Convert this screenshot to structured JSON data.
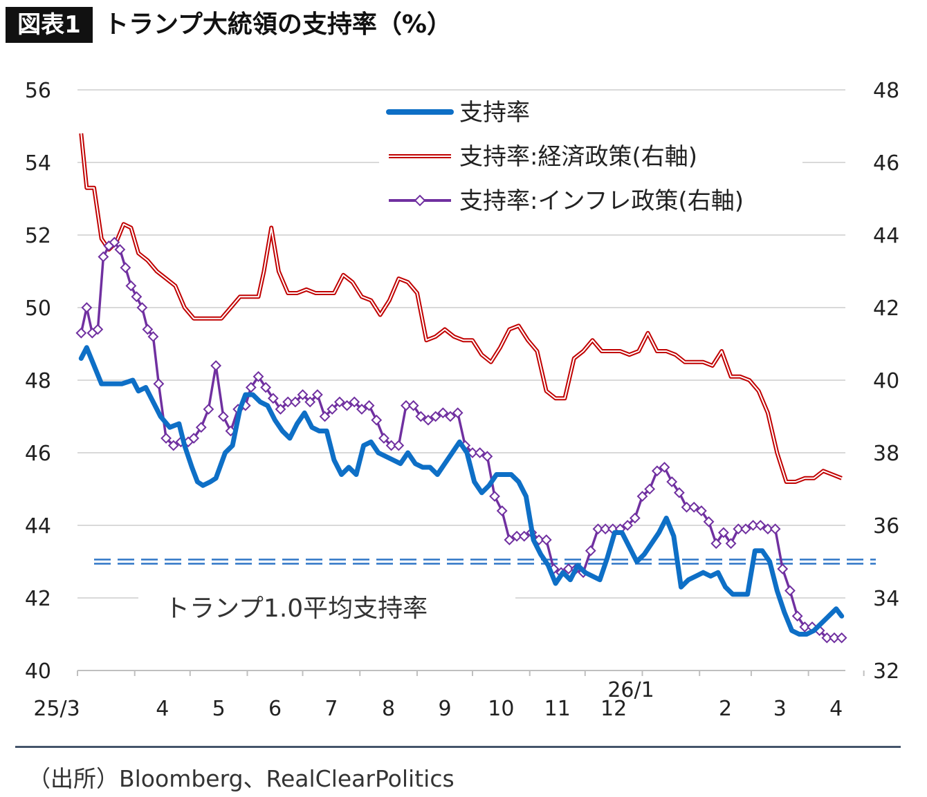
{
  "header": {
    "figure_label": "図表1",
    "title": "トランプ大統領の支持率（%）"
  },
  "footer": {
    "source": "（出所）Bloomberg、RealClearPolitics"
  },
  "chart_data": {
    "type": "line",
    "title": "トランプ大統領の支持率（%）",
    "x_tick_labels": [
      "25/3",
      "4",
      "5",
      "6",
      "7",
      "8",
      "9",
      "10",
      "11",
      "12",
      "26/1",
      "2",
      "3",
      "4"
    ],
    "x_range": [
      "2025-03-01",
      "2026-04-21"
    ],
    "y_left": {
      "range": [
        40,
        56
      ],
      "ticks": [
        40,
        42,
        44,
        46,
        48,
        50,
        52,
        54,
        56
      ]
    },
    "y_right": {
      "range": [
        32,
        48
      ],
      "ticks": [
        32,
        34,
        36,
        38,
        40,
        42,
        44,
        46,
        48
      ]
    },
    "grid": true,
    "legend_position": "top-center",
    "reference_line": {
      "label": "トランプ1.0平均支持率",
      "value": 43,
      "axis": "left",
      "style": "double-dashed",
      "color": "#2e75c6"
    },
    "series": [
      {
        "name": "支持率",
        "axis": "left",
        "color": "#0e6fc6",
        "style": "thick",
        "x": [
          "2025-03-03",
          "2025-03-06",
          "2025-03-10",
          "2025-03-14",
          "2025-03-20",
          "2025-03-25",
          "2025-03-31",
          "2025-04-03",
          "2025-04-07",
          "2025-04-11",
          "2025-04-15",
          "2025-04-20",
          "2025-04-25",
          "2025-04-28",
          "2025-05-02",
          "2025-05-05",
          "2025-05-08",
          "2025-05-12",
          "2025-05-15",
          "2025-05-20",
          "2025-05-24",
          "2025-05-28",
          "2025-05-31",
          "2025-06-04",
          "2025-06-08",
          "2025-06-12",
          "2025-06-16",
          "2025-06-20",
          "2025-06-24",
          "2025-06-28",
          "2025-07-02",
          "2025-07-06",
          "2025-07-10",
          "2025-07-14",
          "2025-07-18",
          "2025-07-22",
          "2025-07-26",
          "2025-07-30",
          "2025-08-03",
          "2025-08-07",
          "2025-08-11",
          "2025-08-15",
          "2025-08-19",
          "2025-08-23",
          "2025-08-27",
          "2025-08-31",
          "2025-09-04",
          "2025-09-08",
          "2025-09-12",
          "2025-09-16",
          "2025-09-20",
          "2025-09-24",
          "2025-09-28",
          "2025-10-02",
          "2025-10-06",
          "2025-10-10",
          "2025-10-14",
          "2025-10-18",
          "2025-10-22",
          "2025-10-26",
          "2025-10-30",
          "2025-11-03",
          "2025-11-07",
          "2025-11-11",
          "2025-11-15",
          "2025-11-19",
          "2025-11-23",
          "2025-11-27",
          "2025-12-01",
          "2025-12-05",
          "2025-12-09",
          "2025-12-13",
          "2025-12-17",
          "2025-12-21",
          "2025-12-25",
          "2025-12-29",
          "2026-01-02",
          "2026-01-06",
          "2026-01-10",
          "2026-01-14",
          "2026-01-18",
          "2026-01-22",
          "2026-01-26",
          "2026-01-30",
          "2026-02-03",
          "2026-02-07",
          "2026-02-11",
          "2026-02-15",
          "2026-02-19",
          "2026-02-23",
          "2026-02-27",
          "2026-03-03",
          "2026-03-07",
          "2026-03-11",
          "2026-03-15",
          "2026-03-19",
          "2026-03-23",
          "2026-03-27",
          "2026-03-31",
          "2026-04-04",
          "2026-04-08",
          "2026-04-12",
          "2026-04-16",
          "2026-04-19"
        ],
        "values": [
          48.6,
          48.9,
          48.4,
          47.9,
          47.9,
          47.9,
          48.0,
          47.7,
          47.8,
          47.4,
          47.0,
          46.7,
          46.8,
          46.2,
          45.6,
          45.2,
          45.1,
          45.2,
          45.3,
          46.0,
          46.2,
          47.2,
          47.6,
          47.6,
          47.4,
          47.3,
          46.9,
          46.6,
          46.4,
          46.8,
          47.1,
          46.7,
          46.6,
          46.6,
          45.8,
          45.4,
          45.6,
          45.4,
          46.2,
          46.3,
          46.0,
          45.9,
          45.8,
          45.7,
          46.0,
          45.7,
          45.6,
          45.6,
          45.4,
          45.7,
          46.0,
          46.3,
          46.0,
          45.2,
          44.9,
          45.1,
          45.4,
          45.4,
          45.4,
          45.2,
          44.8,
          43.6,
          43.2,
          42.9,
          42.4,
          42.7,
          42.5,
          42.9,
          42.7,
          42.6,
          42.5,
          43.1,
          43.8,
          43.8,
          43.4,
          43.0,
          43.2,
          43.5,
          43.8,
          44.2,
          43.7,
          42.3,
          42.5,
          42.6,
          42.7,
          42.6,
          42.7,
          42.3,
          42.1,
          42.1,
          42.1,
          43.3,
          43.3,
          43.0,
          42.2,
          41.6,
          41.1,
          41.0,
          41.0,
          41.1,
          41.3,
          41.5,
          41.7,
          41.5
        ]
      },
      {
        "name": "支持率:経済政策(右軸)",
        "axis": "right",
        "color": "#c00000",
        "style": "double",
        "x": [
          "2025-03-03",
          "2025-03-06",
          "2025-03-10",
          "2025-03-14",
          "2025-03-18",
          "2025-03-22",
          "2025-03-26",
          "2025-03-30",
          "2025-04-03",
          "2025-04-08",
          "2025-04-13",
          "2025-04-18",
          "2025-04-23",
          "2025-04-28",
          "2025-05-03",
          "2025-05-08",
          "2025-05-13",
          "2025-05-18",
          "2025-05-23",
          "2025-05-28",
          "2025-06-02",
          "2025-06-07",
          "2025-06-10",
          "2025-06-14",
          "2025-06-18",
          "2025-06-23",
          "2025-06-28",
          "2025-07-03",
          "2025-07-08",
          "2025-07-13",
          "2025-07-18",
          "2025-07-23",
          "2025-07-28",
          "2025-08-02",
          "2025-08-07",
          "2025-08-12",
          "2025-08-17",
          "2025-08-22",
          "2025-08-27",
          "2025-09-01",
          "2025-09-06",
          "2025-09-11",
          "2025-09-16",
          "2025-09-21",
          "2025-09-26",
          "2025-10-01",
          "2025-10-06",
          "2025-10-11",
          "2025-10-16",
          "2025-10-21",
          "2025-10-26",
          "2025-10-31",
          "2025-11-05",
          "2025-11-10",
          "2025-11-15",
          "2025-11-20",
          "2025-11-25",
          "2025-11-30",
          "2025-12-05",
          "2025-12-10",
          "2025-12-15",
          "2025-12-20",
          "2025-12-25",
          "2025-12-30",
          "2026-01-04",
          "2026-01-09",
          "2026-01-14",
          "2026-01-19",
          "2026-01-24",
          "2026-01-29",
          "2026-02-03",
          "2026-02-08",
          "2026-02-13",
          "2026-02-18",
          "2026-02-23",
          "2026-02-28",
          "2026-03-05",
          "2026-03-10",
          "2026-03-15",
          "2026-03-20",
          "2026-03-25",
          "2026-03-30",
          "2026-04-04",
          "2026-04-09",
          "2026-04-14",
          "2026-04-19"
        ],
        "values": [
          46.8,
          45.3,
          45.3,
          43.9,
          43.6,
          43.8,
          44.3,
          44.2,
          43.5,
          43.3,
          43.0,
          42.8,
          42.6,
          42.0,
          41.7,
          41.7,
          41.7,
          41.7,
          42.0,
          42.3,
          42.3,
          42.3,
          43.0,
          44.2,
          43.0,
          42.4,
          42.4,
          42.5,
          42.4,
          42.4,
          42.4,
          42.9,
          42.7,
          42.3,
          42.2,
          41.8,
          42.2,
          42.8,
          42.7,
          42.4,
          41.1,
          41.2,
          41.4,
          41.2,
          41.1,
          41.1,
          40.7,
          40.5,
          40.9,
          41.4,
          41.5,
          41.1,
          40.8,
          39.7,
          39.5,
          39.5,
          40.6,
          40.8,
          41.1,
          40.8,
          40.8,
          40.8,
          40.7,
          40.8,
          41.3,
          40.8,
          40.8,
          40.7,
          40.5,
          40.5,
          40.5,
          40.4,
          40.8,
          40.1,
          40.1,
          40.0,
          39.7,
          39.1,
          38.0,
          37.2,
          37.2,
          37.3,
          37.3,
          37.5,
          37.4,
          37.3
        ]
      },
      {
        "name": "支持率:インフレ政策(右軸)",
        "axis": "right",
        "color": "#7030a0",
        "style": "line-with-diamond-markers",
        "x": [
          "2025-03-03",
          "2025-03-06",
          "2025-03-09",
          "2025-03-12",
          "2025-03-15",
          "2025-03-18",
          "2025-03-21",
          "2025-03-24",
          "2025-03-27",
          "2025-03-30",
          "2025-04-02",
          "2025-04-05",
          "2025-04-08",
          "2025-04-11",
          "2025-04-14",
          "2025-04-18",
          "2025-04-22",
          "2025-04-26",
          "2025-04-30",
          "2025-05-03",
          "2025-05-07",
          "2025-05-11",
          "2025-05-15",
          "2025-05-19",
          "2025-05-23",
          "2025-05-27",
          "2025-05-31",
          "2025-06-03",
          "2025-06-07",
          "2025-06-11",
          "2025-06-15",
          "2025-06-19",
          "2025-06-23",
          "2025-06-27",
          "2025-07-01",
          "2025-07-05",
          "2025-07-09",
          "2025-07-13",
          "2025-07-17",
          "2025-07-21",
          "2025-07-25",
          "2025-07-29",
          "2025-08-02",
          "2025-08-06",
          "2025-08-10",
          "2025-08-14",
          "2025-08-18",
          "2025-08-22",
          "2025-08-26",
          "2025-08-30",
          "2025-09-03",
          "2025-09-07",
          "2025-09-11",
          "2025-09-15",
          "2025-09-19",
          "2025-09-23",
          "2025-09-27",
          "2025-10-01",
          "2025-10-05",
          "2025-10-09",
          "2025-10-13",
          "2025-10-17",
          "2025-10-21",
          "2025-10-25",
          "2025-10-29",
          "2025-11-02",
          "2025-11-06",
          "2025-11-10",
          "2025-11-14",
          "2025-11-18",
          "2025-11-22",
          "2025-11-26",
          "2025-11-30",
          "2025-12-04",
          "2025-12-08",
          "2025-12-12",
          "2025-12-16",
          "2025-12-20",
          "2025-12-24",
          "2025-12-28",
          "2026-01-01",
          "2026-01-05",
          "2026-01-09",
          "2026-01-13",
          "2026-01-17",
          "2026-01-21",
          "2026-01-25",
          "2026-01-29",
          "2026-02-02",
          "2026-02-06",
          "2026-02-10",
          "2026-02-14",
          "2026-02-18",
          "2026-02-22",
          "2026-02-26",
          "2026-03-02",
          "2026-03-06",
          "2026-03-10",
          "2026-03-14",
          "2026-03-18",
          "2026-03-22",
          "2026-03-26",
          "2026-03-30",
          "2026-04-03",
          "2026-04-07",
          "2026-04-11",
          "2026-04-15",
          "2026-04-19"
        ],
        "values": [
          41.3,
          42.0,
          41.3,
          41.4,
          43.4,
          43.7,
          43.8,
          43.6,
          43.1,
          42.6,
          42.3,
          42.0,
          41.4,
          41.2,
          39.9,
          38.4,
          38.2,
          38.3,
          38.3,
          38.4,
          38.7,
          39.2,
          40.4,
          39.0,
          38.6,
          39.2,
          39.3,
          39.8,
          40.1,
          39.8,
          39.5,
          39.2,
          39.4,
          39.4,
          39.6,
          39.4,
          39.6,
          39.0,
          39.2,
          39.4,
          39.3,
          39.4,
          39.2,
          39.3,
          38.9,
          38.4,
          38.2,
          38.2,
          39.3,
          39.3,
          39.0,
          38.9,
          39.0,
          39.1,
          39.0,
          39.1,
          38.2,
          38.0,
          38.0,
          37.9,
          36.8,
          36.4,
          35.6,
          35.7,
          35.7,
          35.8,
          35.6,
          35.6,
          34.8,
          34.7,
          34.8,
          34.8,
          34.7,
          35.3,
          35.9,
          35.9,
          35.9,
          35.9,
          36.0,
          36.2,
          36.8,
          37.0,
          37.5,
          37.6,
          37.2,
          36.9,
          36.5,
          36.5,
          36.4,
          36.1,
          35.5,
          35.8,
          35.5,
          35.9,
          35.9,
          36.0,
          36.0,
          35.9,
          35.9,
          34.8,
          34.2,
          33.5,
          33.2,
          33.2,
          33.1,
          32.9,
          32.9,
          32.9
        ]
      }
    ]
  }
}
